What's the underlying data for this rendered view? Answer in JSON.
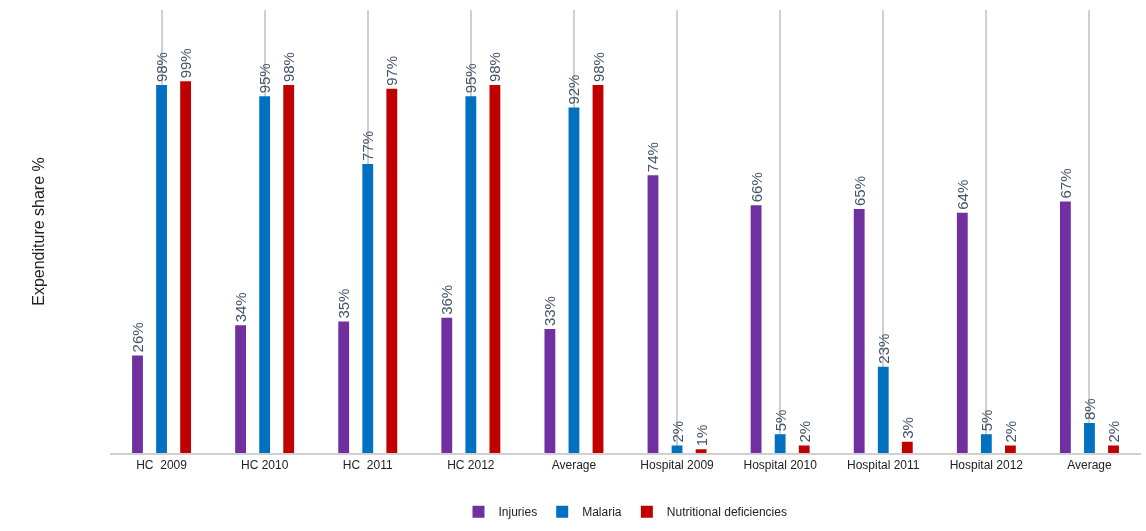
{
  "chart_data": {
    "type": "bar",
    "ylabel": "Expenditure share %",
    "categories": [
      "HC  2009",
      "HC 2010",
      "HC  2011",
      "HC 2012",
      "Average",
      "Hospital 2009",
      "Hospital 2010",
      "Hospital 2011",
      "Hospital 2012",
      "Average"
    ],
    "series": [
      {
        "name": "Injuries",
        "color": "#7030a0",
        "values": [
          26,
          34,
          35,
          36,
          33,
          74,
          66,
          65,
          64,
          67
        ],
        "value_labels": [
          "26%",
          "34%",
          "35%",
          "36%",
          "33%",
          "74%",
          "66%",
          "65%",
          "64%",
          "67%"
        ]
      },
      {
        "name": "Malaria",
        "color": "#0070c0",
        "values": [
          98,
          95,
          77,
          95,
          92,
          2,
          5,
          23,
          5,
          8
        ],
        "value_labels": [
          "98%",
          "95%",
          "77%",
          "95%",
          "92%",
          "2%",
          "5%",
          "23%",
          "5%",
          "8%"
        ]
      },
      {
        "name": "Nutritional deficiencies",
        "color": "#c00000",
        "values": [
          99,
          98,
          97,
          98,
          98,
          1,
          2,
          3,
          2,
          2
        ],
        "value_labels": [
          "99%",
          "98%",
          "97%",
          "98%",
          "98%",
          "1%",
          "2%",
          "3%",
          "2%",
          "2%"
        ]
      }
    ],
    "grid": "x",
    "legend": "bottom",
    "tick_labels": "x"
  }
}
